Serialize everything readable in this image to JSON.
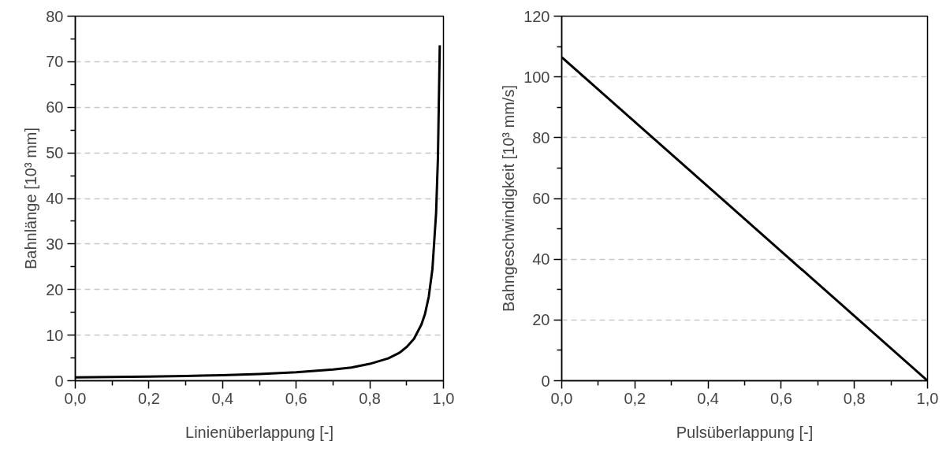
{
  "chart_data": [
    {
      "type": "line",
      "xlabel": "Linienüberlappung [-]",
      "ylabel": "Bahnlänge [10³ mm]",
      "x": [
        0,
        0.1,
        0.2,
        0.3,
        0.4,
        0.5,
        0.6,
        0.7,
        0.75,
        0.8,
        0.85,
        0.88,
        0.9,
        0.92,
        0.94,
        0.95,
        0.96,
        0.97,
        0.98,
        0.985,
        0.99
      ],
      "series": [
        {
          "color": "#000000",
          "values": [
            0.74,
            0.82,
            0.92,
            1.05,
            1.23,
            1.47,
            1.84,
            2.45,
            2.9,
            3.7,
            4.9,
            6.1,
            7.4,
            9.2,
            12.3,
            14.7,
            18.4,
            24.5,
            36.8,
            49,
            73.6
          ]
        }
      ],
      "xlim": [
        0,
        1
      ],
      "ylim": [
        0,
        80
      ],
      "xticks": [
        {
          "value": 0,
          "label": "0,0"
        },
        {
          "value": 0.1,
          "label": null
        },
        {
          "value": 0.2,
          "label": "0,2"
        },
        {
          "value": 0.3,
          "label": null
        },
        {
          "value": 0.4,
          "label": "0,4"
        },
        {
          "value": 0.5,
          "label": null
        },
        {
          "value": 0.6,
          "label": "0,6"
        },
        {
          "value": 0.7,
          "label": null
        },
        {
          "value": 0.8,
          "label": "0,8"
        },
        {
          "value": 0.9,
          "label": null
        },
        {
          "value": 1,
          "label": "1,0"
        }
      ],
      "yticks": [
        0,
        {
          "value": 5,
          "label": null
        },
        10,
        {
          "value": 15,
          "label": null
        },
        20,
        {
          "value": 25,
          "label": null
        },
        30,
        {
          "value": 35,
          "label": null
        },
        40,
        {
          "value": 45,
          "label": null
        },
        50,
        {
          "value": 55,
          "label": null
        },
        60,
        {
          "value": 65,
          "label": null
        },
        70,
        {
          "value": 75,
          "label": null
        },
        80
      ],
      "grid": "y",
      "marker": "none",
      "line_style": "solid"
    },
    {
      "type": "line",
      "xlabel": "Pulsüberlappung [-]",
      "ylabel": "Bahngeschwindigkeit [10³ mm/s]",
      "x": [
        0,
        1
      ],
      "series": [
        {
          "color": "#000000",
          "values": [
            106.5,
            0
          ]
        }
      ],
      "xlim": [
        0,
        1
      ],
      "ylim": [
        0,
        120
      ],
      "xticks": [
        {
          "value": 0,
          "label": "0,0"
        },
        {
          "value": 0.1,
          "label": null
        },
        {
          "value": 0.2,
          "label": "0,2"
        },
        {
          "value": 0.3,
          "label": null
        },
        {
          "value": 0.4,
          "label": "0,4"
        },
        {
          "value": 0.5,
          "label": null
        },
        {
          "value": 0.6,
          "label": "0,6"
        },
        {
          "value": 0.7,
          "label": null
        },
        {
          "value": 0.8,
          "label": "0,8"
        },
        {
          "value": 0.9,
          "label": null
        },
        {
          "value": 1,
          "label": "1,0"
        }
      ],
      "yticks": [
        0,
        {
          "value": 10,
          "label": null
        },
        20,
        {
          "value": 30,
          "label": null
        },
        40,
        {
          "value": 50,
          "label": null
        },
        60,
        {
          "value": 70,
          "label": null
        },
        80,
        {
          "value": 90,
          "label": null
        },
        100,
        {
          "value": 110,
          "label": null
        },
        120
      ],
      "grid": "y",
      "marker": "none",
      "line_style": "solid"
    }
  ]
}
